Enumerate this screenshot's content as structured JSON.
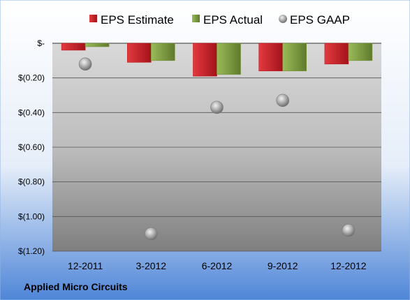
{
  "company_name": "Applied Micro Circuits",
  "colors": {
    "estimate": "#c0181f",
    "actual": "#77933c",
    "gaap": "#a6a6a6",
    "plot_top": "#d9d9d9",
    "plot_bottom": "#7f7f7f",
    "background_top": "#ffffff",
    "background_bottom": "#4f86d8"
  },
  "chart_data": {
    "type": "bar",
    "categories": [
      "12-2011",
      "3-2012",
      "6-2012",
      "9-2012",
      "12-2012"
    ],
    "series": [
      {
        "name": "EPS Estimate",
        "kind": "bar",
        "values": [
          -0.04,
          -0.11,
          -0.19,
          -0.16,
          -0.12
        ]
      },
      {
        "name": "EPS Actual",
        "kind": "bar",
        "values": [
          -0.02,
          -0.1,
          -0.18,
          -0.16,
          -0.1
        ]
      },
      {
        "name": "EPS GAAP",
        "kind": "scatter",
        "values": [
          -0.12,
          -1.1,
          -0.37,
          -0.33,
          -1.08
        ]
      }
    ],
    "ylim": [
      -1.2,
      0
    ],
    "yticks": [
      0,
      -0.2,
      -0.4,
      -0.6,
      -0.8,
      -1.0,
      -1.2
    ],
    "ytick_labels": [
      "$-",
      "$(0.20)",
      "$(0.40)",
      "$(0.60)",
      "$(0.80)",
      "$(1.00)",
      "$(1.20)"
    ],
    "legend_position": "top",
    "grid": true
  }
}
